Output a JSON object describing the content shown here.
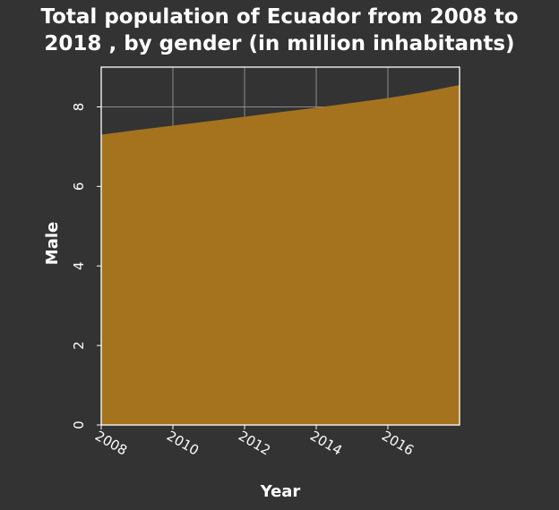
{
  "chart_data": {
    "type": "area",
    "title_lines": [
      "Total population of Ecuador from 2008 to",
      "2018 , by gender (in million inhabitants)"
    ],
    "xlabel": "Year",
    "ylabel": "Male",
    "x": [
      2008,
      2009,
      2010,
      2011,
      2012,
      2013,
      2014,
      2015,
      2016,
      2017,
      2018
    ],
    "series": [
      {
        "values": [
          7.3,
          7.42,
          7.53,
          7.64,
          7.75,
          7.87,
          7.98,
          8.1,
          8.22,
          8.37,
          8.55
        ]
      }
    ],
    "xlim": [
      2008,
      2018
    ],
    "ylim": [
      0,
      9
    ],
    "xticks": [
      2008,
      2010,
      2012,
      2014,
      2016
    ],
    "yticks": [
      0,
      2,
      4,
      6,
      8
    ],
    "grid": true,
    "colors": {
      "fill": "#A5721E",
      "background": "#333333",
      "grid": "#8C8C8C"
    }
  }
}
